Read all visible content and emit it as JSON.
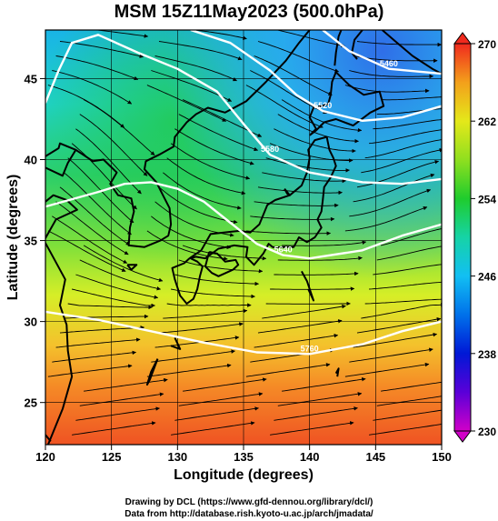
{
  "title": "MSM 15Z11May2023 (500.0hPa)",
  "map": {
    "lon_range": [
      120,
      150
    ],
    "lat_range": [
      22.4,
      48
    ],
    "x_ticks": [
      120,
      125,
      130,
      135,
      140,
      145,
      150
    ],
    "y_ticks": [
      25,
      30,
      35,
      40,
      45
    ],
    "xlabel": "Longitude (degrees)",
    "ylabel": "Latitude  (degrees)",
    "grid": true
  },
  "colorbar": {
    "min": 230,
    "max": 270,
    "ticks": [
      230,
      238,
      246,
      254,
      262,
      270
    ]
  },
  "contours": [
    {
      "label": "5760",
      "points": [
        [
          120,
          30.6
        ],
        [
          124,
          30.1
        ],
        [
          128,
          29.4
        ],
        [
          132,
          28.7
        ],
        [
          136,
          28.1
        ],
        [
          140,
          28.0
        ],
        [
          144,
          28.6
        ],
        [
          147,
          29.4
        ],
        [
          150,
          30.0
        ]
      ]
    },
    {
      "label": "5640",
      "points": [
        [
          120,
          37.1
        ],
        [
          124,
          38.0
        ],
        [
          126,
          38.5
        ],
        [
          128,
          38.6
        ],
        [
          130,
          38.2
        ],
        [
          132,
          37.4
        ],
        [
          134,
          36.1
        ],
        [
          136,
          34.8
        ],
        [
          138,
          34.1
        ],
        [
          140,
          33.9
        ],
        [
          144,
          34.4
        ],
        [
          147,
          35.3
        ],
        [
          150,
          36.0
        ]
      ]
    },
    {
      "label": "5580",
      "points": [
        [
          120,
          43.5
        ],
        [
          121,
          45.5
        ],
        [
          122,
          47.2
        ],
        [
          124,
          47.7
        ],
        [
          127,
          46.6
        ],
        [
          130,
          45.6
        ],
        [
          133,
          44.2
        ],
        [
          135,
          42.2
        ],
        [
          137,
          40.3
        ],
        [
          140,
          39.2
        ],
        [
          144,
          38.6
        ],
        [
          147,
          38.5
        ],
        [
          150,
          38.8
        ]
      ]
    },
    {
      "label": "5520",
      "points": [
        [
          131,
          48.0
        ],
        [
          134,
          47.2
        ],
        [
          137,
          45.5
        ],
        [
          139,
          44.0
        ],
        [
          141,
          43.0
        ],
        [
          144,
          42.4
        ],
        [
          147,
          42.6
        ],
        [
          150,
          43.3
        ]
      ]
    },
    {
      "label": "5460",
      "points": [
        [
          141,
          48.0
        ],
        [
          143,
          46.7
        ],
        [
          146,
          45.6
        ],
        [
          150,
          45.3
        ]
      ]
    }
  ],
  "coastlines": [
    [
      [
        120.2,
        22.4
      ],
      [
        121.3,
        24.6
      ],
      [
        122.0,
        26.6
      ],
      [
        121.7,
        28.2
      ],
      [
        121.6,
        29.8
      ],
      [
        121.1,
        31.0
      ],
      [
        121.5,
        32.6
      ],
      [
        120.3,
        34.4
      ],
      [
        119.9,
        35.0
      ],
      [
        120.8,
        36.3
      ],
      [
        122.4,
        36.9
      ],
      [
        121.6,
        37.5
      ],
      [
        120.6,
        37.8
      ],
      [
        120.0,
        37.4
      ]
    ],
    [
      [
        120.0,
        39.5
      ],
      [
        121.3,
        39.0
      ],
      [
        121.7,
        39.8
      ],
      [
        122.3,
        40.6
      ],
      [
        121.1,
        41.0
      ],
      [
        121.0,
        40.7
      ],
      [
        120.0,
        40.2
      ]
    ],
    [
      [
        122.3,
        40.6
      ],
      [
        123.6,
        39.9
      ],
      [
        124.4,
        40.0
      ],
      [
        124.9,
        39.6
      ],
      [
        125.4,
        39.2
      ],
      [
        124.9,
        38.5
      ],
      [
        125.5,
        37.8
      ],
      [
        126.5,
        37.6
      ],
      [
        126.7,
        36.8
      ],
      [
        126.4,
        35.8
      ],
      [
        126.3,
        34.7
      ],
      [
        127.5,
        34.6
      ],
      [
        128.7,
        35.0
      ],
      [
        129.3,
        35.3
      ],
      [
        129.5,
        36.0
      ],
      [
        129.4,
        37.0
      ],
      [
        128.9,
        37.8
      ],
      [
        128.4,
        38.6
      ],
      [
        127.5,
        39.4
      ],
      [
        127.6,
        39.9
      ],
      [
        128.6,
        40.3
      ],
      [
        129.7,
        40.8
      ],
      [
        129.8,
        41.4
      ],
      [
        130.7,
        42.3
      ],
      [
        131.4,
        42.8
      ],
      [
        132.3,
        43.2
      ],
      [
        133.6,
        42.9
      ],
      [
        135.2,
        43.6
      ],
      [
        136.7,
        44.8
      ],
      [
        138.2,
        46.1
      ],
      [
        139.2,
        47.2
      ],
      [
        140.0,
        48.0
      ]
    ],
    [
      [
        130.9,
        33.9
      ],
      [
        130.5,
        33.6
      ],
      [
        129.6,
        33.3
      ],
      [
        129.8,
        32.6
      ],
      [
        130.2,
        31.6
      ],
      [
        130.7,
        31.1
      ],
      [
        131.2,
        31.4
      ],
      [
        131.5,
        32.0
      ],
      [
        131.7,
        32.8
      ],
      [
        131.9,
        33.4
      ],
      [
        131.5,
        33.7
      ],
      [
        131.0,
        33.9
      ]
    ],
    [
      [
        132.4,
        34.3
      ],
      [
        133.0,
        34.2
      ],
      [
        133.6,
        33.7
      ],
      [
        134.4,
        33.8
      ],
      [
        134.6,
        33.5
      ],
      [
        134.2,
        33.2
      ],
      [
        133.1,
        32.8
      ],
      [
        132.6,
        33.0
      ],
      [
        132.1,
        33.4
      ],
      [
        132.4,
        34.3
      ]
    ],
    [
      [
        130.9,
        33.9
      ],
      [
        131.8,
        34.4
      ],
      [
        132.5,
        35.4
      ],
      [
        133.5,
        35.5
      ],
      [
        134.7,
        35.6
      ],
      [
        135.5,
        35.5
      ],
      [
        136.2,
        36.0
      ],
      [
        136.8,
        37.2
      ],
      [
        137.4,
        37.5
      ],
      [
        138.5,
        37.8
      ],
      [
        139.4,
        38.4
      ],
      [
        139.8,
        39.2
      ],
      [
        140.0,
        40.1
      ],
      [
        139.9,
        40.6
      ],
      [
        140.4,
        41.2
      ],
      [
        141.3,
        41.4
      ],
      [
        141.5,
        40.6
      ],
      [
        141.8,
        40.1
      ],
      [
        142.0,
        39.6
      ],
      [
        141.6,
        38.9
      ],
      [
        141.1,
        38.3
      ],
      [
        141.0,
        37.5
      ],
      [
        140.9,
        36.8
      ],
      [
        140.6,
        36.3
      ],
      [
        140.9,
        35.8
      ],
      [
        140.4,
        35.2
      ],
      [
        139.8,
        34.9
      ],
      [
        139.2,
        35.2
      ],
      [
        138.8,
        34.6
      ],
      [
        138.2,
        34.6
      ],
      [
        137.2,
        34.6
      ],
      [
        136.9,
        34.8
      ],
      [
        136.5,
        34.2
      ],
      [
        135.8,
        33.5
      ],
      [
        135.2,
        34.0
      ],
      [
        135.3,
        34.6
      ],
      [
        134.3,
        34.7
      ],
      [
        133.1,
        34.5
      ],
      [
        132.1,
        33.9
      ],
      [
        131.4,
        34.0
      ],
      [
        130.9,
        33.9
      ]
    ],
    [
      [
        140.0,
        41.5
      ],
      [
        140.5,
        41.9
      ],
      [
        140.0,
        42.6
      ],
      [
        140.3,
        43.2
      ],
      [
        141.4,
        43.4
      ],
      [
        141.6,
        44.0
      ],
      [
        141.7,
        44.8
      ],
      [
        142.0,
        45.4
      ],
      [
        143.0,
        44.6
      ],
      [
        144.1,
        44.0
      ],
      [
        145.3,
        44.2
      ],
      [
        145.6,
        43.3
      ],
      [
        144.6,
        42.9
      ],
      [
        143.3,
        42.1
      ],
      [
        142.0,
        42.5
      ],
      [
        141.1,
        42.3
      ],
      [
        140.5,
        41.8
      ],
      [
        140.0,
        41.5
      ]
    ],
    [
      [
        141.9,
        45.8
      ],
      [
        142.0,
        46.6
      ],
      [
        142.2,
        47.6
      ],
      [
        142.4,
        48.0
      ]
    ],
    [
      [
        144.0,
        48.0
      ],
      [
        143.4,
        47.4
      ],
      [
        143.2,
        46.6
      ],
      [
        143.6,
        46.2
      ]
    ],
    [
      [
        138.1,
        38.2
      ],
      [
        138.5,
        37.8
      ],
      [
        138.3,
        37.9
      ],
      [
        138.1,
        38.2
      ]
    ],
    [
      [
        128.5,
        27.7
      ],
      [
        128.0,
        26.9
      ],
      [
        127.7,
        26.1
      ],
      [
        127.9,
        26.4
      ],
      [
        128.5,
        27.7
      ]
    ],
    [
      [
        129.8,
        29.0
      ],
      [
        130.2,
        28.3
      ],
      [
        129.5,
        28.5
      ]
    ],
    [
      [
        126.2,
        33.5
      ],
      [
        126.9,
        33.5
      ],
      [
        126.5,
        33.2
      ],
      [
        126.2,
        33.5
      ]
    ],
    [
      [
        120.0,
        23.0
      ],
      [
        120.4,
        22.6
      ]
    ],
    [
      [
        145.5,
        48.0
      ],
      [
        146.5,
        47.3
      ],
      [
        147.8,
        46.4
      ],
      [
        149.3,
        45.6
      ],
      [
        150.0,
        45.3
      ]
    ],
    [
      [
        139.4,
        33.1
      ],
      [
        139.8,
        32.5
      ],
      [
        140.3,
        31.3
      ],
      [
        139.9,
        32.0
      ]
    ],
    [
      [
        142.1,
        26.6
      ],
      [
        142.2,
        27.1
      ],
      [
        142.0,
        26.8
      ]
    ]
  ],
  "credit": {
    "line1": "Drawing by DCL (https://www.gfd-dennou.org/library/dcl/)",
    "line2": "Data from http://database.rish.kyoto-u.ac.jp/arch/jmadata/"
  }
}
